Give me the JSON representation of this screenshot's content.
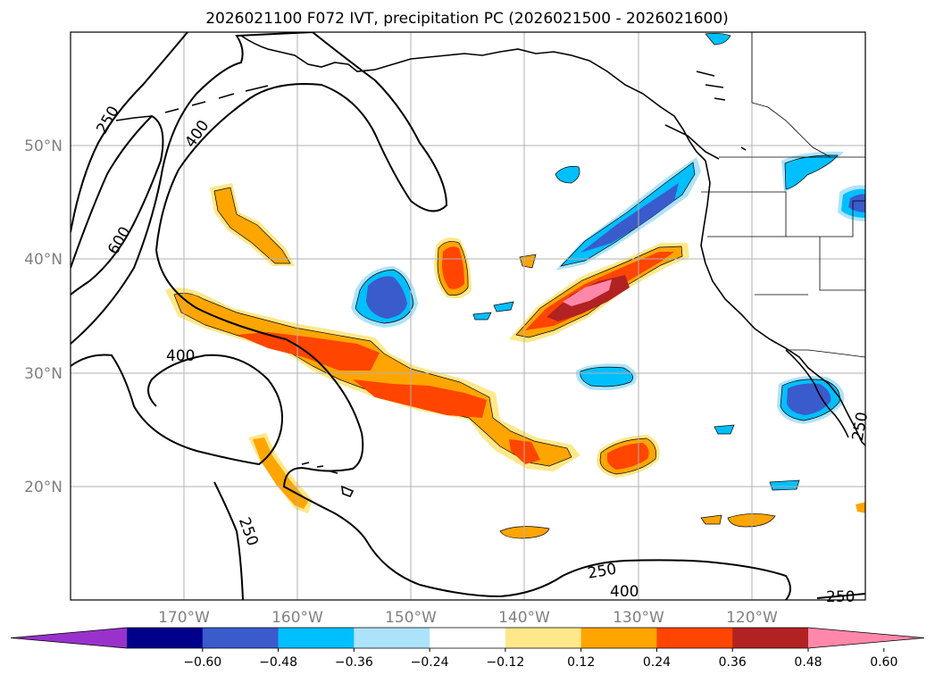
{
  "chart_data": {
    "type": "contour-map",
    "title": "2026021100 F072 IVT, precipitation PC (2026021500 - 2026021600)",
    "lat_ticks": [
      "50°N",
      "40°N",
      "30°N",
      "20°N"
    ],
    "lat_values": [
      50,
      40,
      30,
      20
    ],
    "lon_ticks": [
      "170°W",
      "160°W",
      "150°W",
      "140°W",
      "130°W",
      "120°W"
    ],
    "lon_values": [
      -170,
      -160,
      -150,
      -140,
      -130,
      -120
    ],
    "lon_range": [
      -180,
      -110
    ],
    "lat_range": [
      10,
      60
    ],
    "ivt_contour_levels": [
      250,
      400,
      600
    ],
    "contour_labels": [
      "250",
      "400",
      "600",
      "400",
      "250",
      "250",
      "400",
      "250",
      "250"
    ],
    "colorbar": {
      "ticks": [
        "−0.60",
        "−0.48",
        "−0.36",
        "−0.24",
        "−0.12",
        "0.12",
        "0.24",
        "0.36",
        "0.48",
        "0.60"
      ],
      "values": [
        -0.6,
        -0.48,
        -0.36,
        -0.24,
        -0.12,
        0.12,
        0.24,
        0.36,
        0.48,
        0.6
      ],
      "colors": [
        "#9932cc",
        "#00008b",
        "#3a5bcc",
        "#00bfff",
        "#ade3fa",
        "#ffffff",
        "#ffe88a",
        "#ffa500",
        "#ff4500",
        "#b22222",
        "#ff88aa"
      ],
      "extend": "both"
    }
  }
}
